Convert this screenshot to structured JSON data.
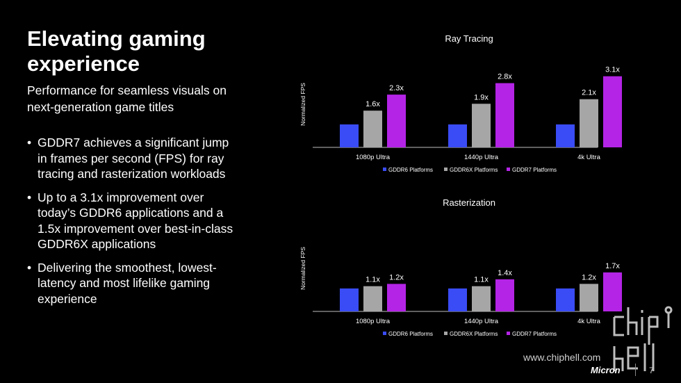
{
  "slide": {
    "title": "Elevating gaming experience",
    "subtitle": "Performance for seamless visuals on next-generation game titles",
    "bullets": [
      "GDDR7 achieves a significant jump in frames per second (FPS) for ray tracing and rasterization workloads",
      "Up to a 3.1x improvement over today’s GDDR6 applications and a 1.5x improvement over best-in-class GDDR6X applications",
      "Delivering the smoothest, lowest-latency and most lifelike gaming experience"
    ],
    "bullet_glyph": "•",
    "page_number": "7",
    "brand": "Micron",
    "watermark": "www.chiphell.com"
  },
  "colors": {
    "gddr6": "#3a4cf5",
    "gddr6x": "#a6a6a6",
    "gddr7": "#b424e6",
    "background": "#000000",
    "text": "#ffffff"
  },
  "chart_data": [
    {
      "type": "bar",
      "title": "Ray Tracing",
      "ylabel": "Normalized FPS",
      "categories": [
        "1080p Ultra",
        "1440p Ultra",
        "4k Ultra"
      ],
      "series": [
        {
          "name": "GDDR6 Platforms",
          "values": [
            1.0,
            1.0,
            1.0
          ],
          "labels": [
            "",
            "",
            ""
          ]
        },
        {
          "name": "GDDR6X Platforms",
          "values": [
            1.6,
            1.9,
            2.1
          ],
          "labels": [
            "1.6x",
            "1.9x",
            "2.1x"
          ]
        },
        {
          "name": "GDDR7 Platforms",
          "values": [
            2.3,
            2.8,
            3.1
          ],
          "labels": [
            "2.3x",
            "2.8x",
            "3.1x"
          ]
        }
      ],
      "legend": "bottom",
      "grid": false
    },
    {
      "type": "bar",
      "title": "Rasterization",
      "ylabel": "Normalized FPS",
      "categories": [
        "1080p Ultra",
        "1440p Ultra",
        "4k Ultra"
      ],
      "series": [
        {
          "name": "GDDR6 Platforms",
          "values": [
            1.0,
            1.0,
            1.0
          ],
          "labels": [
            "",
            "",
            ""
          ]
        },
        {
          "name": "GDDR6X Platforms",
          "values": [
            1.1,
            1.1,
            1.2
          ],
          "labels": [
            "1.1x",
            "1.1x",
            "1.2x"
          ]
        },
        {
          "name": "GDDR7 Platforms",
          "values": [
            1.2,
            1.4,
            1.7
          ],
          "labels": [
            "1.2x",
            "1.4x",
            "1.7x"
          ]
        }
      ],
      "legend": "bottom",
      "grid": false
    }
  ]
}
